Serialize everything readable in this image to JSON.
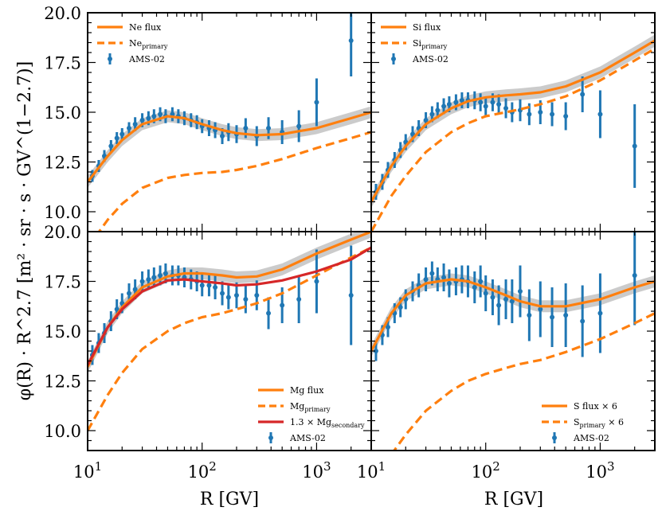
{
  "figure": {
    "ylabel": "φ(R) · R^2.7 [m² · sr · s · GV^(1−2.7)]",
    "xlabel": "R [GV]"
  },
  "colors": {
    "orange": "#ff7f0e",
    "blue": "#1f77b4",
    "red": "#d62728",
    "band": "#a9a9a9"
  },
  "chart_data": [
    {
      "type": "line",
      "panel": "Ne",
      "xscale": "log",
      "xlim": [
        10,
        3000
      ],
      "ylim": [
        9.0,
        20.0
      ],
      "yticks": [
        "10.0",
        "12.5",
        "15.0",
        "17.5",
        "20.0"
      ],
      "xticks": [],
      "legend": [
        "Ne flux",
        "Ne_primary",
        "AMS-02"
      ],
      "legend_position": "top-left",
      "series": [
        {
          "name": "Ne flux",
          "style": "solid",
          "color": "orange",
          "x": [
            10,
            15,
            20,
            30,
            50,
            70,
            100,
            150,
            200,
            300,
            500,
            1000,
            2000,
            3000
          ],
          "y": [
            11.5,
            12.8,
            13.6,
            14.4,
            14.8,
            14.7,
            14.4,
            14.1,
            13.95,
            13.85,
            13.9,
            14.2,
            14.7,
            15.0
          ]
        },
        {
          "name": "Ne_primary",
          "style": "dashed",
          "color": "orange",
          "x": [
            10,
            15,
            20,
            30,
            50,
            70,
            100,
            150,
            200,
            300,
            500,
            1000,
            2000,
            3000
          ],
          "y": [
            8.2,
            9.6,
            10.4,
            11.2,
            11.7,
            11.85,
            11.95,
            12.0,
            12.1,
            12.3,
            12.65,
            13.2,
            13.7,
            14.0
          ]
        },
        {
          "name": "AMS-02",
          "style": "errorbar",
          "color": "blue",
          "x": [
            11,
            12.5,
            14,
            16,
            18,
            20,
            23,
            26,
            30,
            34,
            38,
            43,
            48,
            55,
            62,
            70,
            80,
            90,
            100,
            115,
            130,
            150,
            170,
            200,
            240,
            300,
            380,
            500,
            700,
            1000,
            2000
          ],
          "y": [
            11.8,
            12.3,
            12.8,
            13.3,
            13.7,
            13.9,
            14.2,
            14.4,
            14.6,
            14.7,
            14.8,
            14.9,
            14.8,
            14.9,
            14.8,
            14.7,
            14.6,
            14.5,
            14.3,
            14.2,
            14.1,
            13.8,
            14.0,
            13.9,
            14.2,
            13.8,
            14.2,
            14.0,
            14.3,
            15.5,
            18.6
          ],
          "err": [
            0.3,
            0.3,
            0.3,
            0.3,
            0.3,
            0.3,
            0.3,
            0.35,
            0.35,
            0.35,
            0.35,
            0.35,
            0.35,
            0.35,
            0.35,
            0.35,
            0.35,
            0.35,
            0.35,
            0.4,
            0.4,
            0.4,
            0.45,
            0.45,
            0.5,
            0.5,
            0.55,
            0.6,
            0.8,
            1.2,
            1.8
          ]
        }
      ]
    },
    {
      "type": "line",
      "panel": "Si",
      "xscale": "log",
      "xlim": [
        10,
        3000
      ],
      "ylim": [
        9.0,
        20.0
      ],
      "yticks": [],
      "xticks": [],
      "legend": [
        "Si flux",
        "Si_primary",
        "AMS-02"
      ],
      "legend_position": "top-left",
      "series": [
        {
          "name": "Si flux",
          "style": "solid",
          "color": "orange",
          "x": [
            10,
            15,
            20,
            30,
            50,
            70,
            100,
            150,
            200,
            300,
            500,
            1000,
            2000,
            3000
          ],
          "y": [
            10.5,
            12.3,
            13.3,
            14.4,
            15.2,
            15.55,
            15.75,
            15.85,
            15.9,
            16.0,
            16.3,
            17.0,
            18.0,
            18.6
          ]
        },
        {
          "name": "Si_primary",
          "style": "dashed",
          "color": "orange",
          "x": [
            10,
            15,
            20,
            30,
            50,
            70,
            100,
            150,
            200,
            300,
            500,
            1000,
            2000,
            3000
          ],
          "y": [
            9.0,
            10.8,
            11.8,
            13.0,
            14.0,
            14.45,
            14.8,
            15.0,
            15.15,
            15.4,
            15.8,
            16.6,
            17.6,
            18.2
          ]
        },
        {
          "name": "AMS-02",
          "style": "errorbar",
          "color": "blue",
          "x": [
            11,
            12.5,
            14,
            16,
            18,
            20,
            23,
            26,
            30,
            34,
            38,
            43,
            48,
            55,
            62,
            70,
            80,
            90,
            100,
            115,
            130,
            150,
            170,
            200,
            240,
            300,
            380,
            500,
            700,
            1000,
            2000
          ],
          "y": [
            11.0,
            11.5,
            12.1,
            12.6,
            13.1,
            13.5,
            13.9,
            14.2,
            14.6,
            14.9,
            15.1,
            15.3,
            15.4,
            15.5,
            15.6,
            15.6,
            15.6,
            15.5,
            15.3,
            15.5,
            15.4,
            15.2,
            15.0,
            15.1,
            14.9,
            15.0,
            14.9,
            14.8,
            15.9,
            14.9,
            13.3
          ],
          "err": [
            0.4,
            0.4,
            0.4,
            0.4,
            0.4,
            0.4,
            0.4,
            0.4,
            0.4,
            0.4,
            0.4,
            0.4,
            0.4,
            0.4,
            0.4,
            0.4,
            0.45,
            0.45,
            0.45,
            0.45,
            0.5,
            0.5,
            0.5,
            0.55,
            0.55,
            0.6,
            0.6,
            0.7,
            0.9,
            1.2,
            2.1
          ]
        }
      ]
    },
    {
      "type": "line",
      "panel": "Mg",
      "xscale": "log",
      "xlim": [
        10,
        3000
      ],
      "ylim": [
        9.0,
        20.0
      ],
      "yticks": [
        "10.0",
        "12.5",
        "15.0",
        "17.5",
        "20.0"
      ],
      "xticks": [
        "10^1",
        "10^2",
        "10^3"
      ],
      "legend": [
        "Mg flux",
        "Mg_primary",
        "1.3 × Mg_secondary",
        "AMS-02"
      ],
      "legend_position": "bottom-right",
      "series": [
        {
          "name": "Mg flux",
          "style": "solid",
          "color": "orange",
          "x": [
            10,
            15,
            20,
            30,
            50,
            70,
            100,
            150,
            200,
            300,
            500,
            1000,
            2000,
            3000
          ],
          "y": [
            13.2,
            15.2,
            16.2,
            17.2,
            17.75,
            17.9,
            17.9,
            17.8,
            17.7,
            17.75,
            18.1,
            18.9,
            19.6,
            20.0
          ]
        },
        {
          "name": "Mg_primary",
          "style": "dashed",
          "color": "orange",
          "x": [
            10,
            15,
            20,
            30,
            50,
            70,
            100,
            150,
            200,
            300,
            500,
            1000,
            2000,
            3000
          ],
          "y": [
            10.0,
            11.8,
            12.9,
            14.1,
            15.0,
            15.4,
            15.7,
            15.9,
            16.1,
            16.4,
            16.9,
            17.8,
            18.7,
            19.2
          ]
        },
        {
          "name": "1.3 × Mg_secondary",
          "style": "solid",
          "color": "red",
          "x": [
            10,
            15,
            20,
            30,
            50,
            70,
            100,
            150,
            200,
            300,
            500,
            1000,
            2000,
            3000
          ],
          "y": [
            13.3,
            15.2,
            16.1,
            17.0,
            17.55,
            17.6,
            17.5,
            17.4,
            17.3,
            17.35,
            17.55,
            18.0,
            18.6,
            19.2
          ]
        },
        {
          "name": "AMS-02",
          "style": "errorbar",
          "color": "blue",
          "x": [
            11,
            12.5,
            14,
            16,
            18,
            20,
            23,
            26,
            30,
            34,
            38,
            43,
            48,
            55,
            62,
            70,
            80,
            90,
            100,
            115,
            130,
            150,
            170,
            200,
            240,
            300,
            380,
            500,
            700,
            1000,
            2000
          ],
          "y": [
            13.8,
            14.4,
            14.9,
            15.5,
            16.1,
            16.4,
            16.9,
            17.1,
            17.5,
            17.6,
            17.7,
            17.8,
            17.9,
            17.8,
            17.8,
            17.7,
            17.6,
            17.5,
            17.3,
            17.3,
            17.2,
            16.9,
            16.7,
            16.8,
            16.6,
            16.8,
            15.9,
            16.3,
            16.6,
            17.5,
            16.8
          ],
          "err": [
            0.5,
            0.5,
            0.5,
            0.5,
            0.5,
            0.5,
            0.5,
            0.5,
            0.5,
            0.5,
            0.5,
            0.5,
            0.5,
            0.5,
            0.5,
            0.5,
            0.5,
            0.5,
            0.55,
            0.55,
            0.6,
            0.6,
            0.6,
            0.65,
            0.7,
            0.75,
            0.8,
            0.9,
            1.2,
            1.6,
            2.5
          ]
        }
      ]
    },
    {
      "type": "line",
      "panel": "S",
      "xscale": "log",
      "xlim": [
        10,
        3000
      ],
      "ylim": [
        9.0,
        20.0
      ],
      "yticks": [],
      "xticks": [
        "10^1",
        "10^2",
        "10^3"
      ],
      "legend": [
        "S flux × 6",
        "S_primary × 6",
        "AMS-02"
      ],
      "legend_position": "bottom-right",
      "series": [
        {
          "name": "S flux × 6",
          "style": "solid",
          "color": "orange",
          "x": [
            10,
            15,
            20,
            30,
            50,
            70,
            100,
            150,
            200,
            300,
            500,
            1000,
            2000,
            3000
          ],
          "y": [
            14.0,
            15.9,
            16.8,
            17.4,
            17.6,
            17.5,
            17.2,
            16.8,
            16.5,
            16.25,
            16.25,
            16.6,
            17.2,
            17.5
          ]
        },
        {
          "name": "S_primary × 6",
          "style": "dashed",
          "color": "orange",
          "x": [
            10,
            15,
            20,
            30,
            50,
            70,
            100,
            150,
            200,
            300,
            500,
            1000,
            2000,
            3000
          ],
          "y": [
            7.0,
            8.8,
            9.8,
            11.0,
            12.0,
            12.5,
            12.85,
            13.15,
            13.35,
            13.55,
            13.95,
            14.6,
            15.4,
            15.9
          ]
        },
        {
          "name": "AMS-02",
          "style": "errorbar",
          "color": "blue",
          "x": [
            11,
            12.5,
            14,
            16,
            18,
            20,
            23,
            26,
            30,
            34,
            38,
            43,
            48,
            55,
            62,
            70,
            80,
            90,
            100,
            115,
            130,
            150,
            170,
            200,
            240,
            300,
            380,
            500,
            700,
            1000,
            2000
          ],
          "y": [
            14.0,
            14.8,
            15.2,
            15.9,
            16.2,
            16.6,
            17.0,
            17.3,
            17.6,
            17.9,
            17.6,
            17.7,
            17.4,
            17.5,
            17.6,
            17.5,
            17.2,
            17.5,
            16.9,
            16.7,
            16.3,
            16.6,
            16.5,
            17.0,
            15.8,
            16.1,
            15.7,
            15.8,
            15.5,
            15.9,
            17.8
          ],
          "err": [
            0.5,
            0.5,
            0.5,
            0.5,
            0.5,
            0.5,
            0.5,
            0.6,
            0.6,
            0.6,
            0.6,
            0.7,
            0.7,
            0.7,
            0.7,
            0.8,
            0.8,
            0.8,
            0.9,
            0.9,
            1.0,
            1.0,
            1.1,
            1.3,
            1.3,
            1.4,
            1.5,
            1.6,
            1.8,
            2.0,
            2.5
          ]
        }
      ]
    }
  ]
}
